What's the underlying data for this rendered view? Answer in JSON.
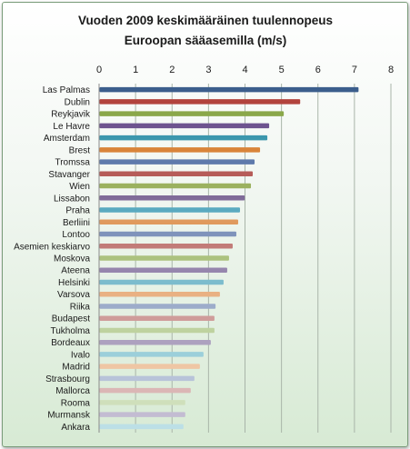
{
  "chart_data": {
    "type": "bar",
    "orientation": "horizontal",
    "title": "Vuoden 2009 keskimääräinen tuulennopeus",
    "subtitle": "Euroopan sääasemilla (m/s)",
    "xlim": [
      0,
      8
    ],
    "xticks": [
      "0",
      "1",
      "2",
      "3",
      "4",
      "5",
      "6",
      "7",
      "8"
    ],
    "grid": true,
    "categories": [
      "Las Palmas",
      "Dublin",
      "Reykjavik",
      "Le Havre",
      "Amsterdam",
      "Brest",
      "Tromssa",
      "Stavanger",
      "Wien",
      "Lissabon",
      "Praha",
      "Berliini",
      "Lontoo",
      "Asemien keskiarvo",
      "Moskova",
      "Ateena",
      "Helsinki",
      "Varsova",
      "Riika",
      "Budapest",
      "Tukholma",
      "Bordeaux",
      "Ivalo",
      "Madrid",
      "Strasbourg",
      "Mallorca",
      "Rooma",
      "Murmansk",
      "Ankara"
    ],
    "values": [
      7.1,
      5.5,
      5.05,
      4.65,
      4.6,
      4.4,
      4.25,
      4.2,
      4.15,
      3.98,
      3.85,
      3.8,
      3.75,
      3.65,
      3.55,
      3.5,
      3.4,
      3.3,
      3.18,
      3.15,
      3.15,
      3.05,
      2.85,
      2.75,
      2.6,
      2.5,
      2.35,
      2.35,
      2.3
    ],
    "colors": [
      "#3b5e8c",
      "#b2433d",
      "#8aa84a",
      "#6e548f",
      "#3c97ad",
      "#d9843a",
      "#5e7aab",
      "#b65c58",
      "#9bb15e",
      "#806b99",
      "#5aaac0",
      "#e09a5e",
      "#7f93bb",
      "#c27b78",
      "#acc27f",
      "#9686ad",
      "#7cbccd",
      "#e9b183",
      "#9dacca",
      "#cf9c9a",
      "#bed29f",
      "#ada1bf",
      "#9ccfda",
      "#efc6a4",
      "#b8c3d9",
      "#dbb6b5",
      "#cfdfbb",
      "#c3bcd2",
      "#bcdfe6"
    ]
  }
}
